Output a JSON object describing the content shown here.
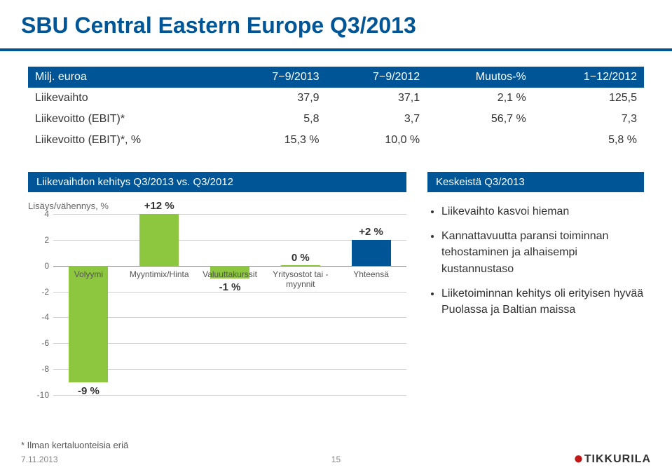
{
  "title": "SBU Central Eastern Europe Q3/2013",
  "table": {
    "header": [
      "Milj. euroa",
      "7−9/2013",
      "7−9/2012",
      "Muutos-%",
      "1−12/2012"
    ],
    "rows": [
      {
        "name": "Liikevaihto",
        "c1": "37,9",
        "c2": "37,1",
        "c3": "2,1 %",
        "c4": "125,5"
      },
      {
        "name": "Liikevoitto (EBIT)*",
        "c1": "5,8",
        "c2": "3,7",
        "c3": "56,7 %",
        "c4": "7,3"
      },
      {
        "name": "Liikevoitto (EBIT)*, %",
        "c1": "15,3 %",
        "c2": "10,0 %",
        "c3": "",
        "c4": "5,8 %"
      }
    ]
  },
  "midLeft": "Liikevaihdon kehitys Q3/2013 vs. Q3/2012",
  "midRight": "Keskeistä Q3/2013",
  "chart": {
    "yAxisLabel": "Lisäys/vähennys, %",
    "ymin": -10,
    "ymax": 4,
    "ytick_step": 2,
    "grid_color": "#cfcfcf",
    "zero_color": "#888888",
    "bars": [
      {
        "category": "Volyymi",
        "value": -9,
        "label": "-9 %",
        "color": "green"
      },
      {
        "category": "Myyntimix/Hinta",
        "value": 12,
        "label": "+12 %",
        "color": "green",
        "clamp_top": true
      },
      {
        "category": "Valuuttakurssit",
        "value": -1,
        "label": "-1 %",
        "color": "green"
      },
      {
        "category": "Yritysostot tai -\nmyynnit",
        "value": 0,
        "label": "0 %",
        "color": "green"
      },
      {
        "category": "Yhteensä",
        "value": 2,
        "label": "+2 %",
        "color": "blue"
      }
    ]
  },
  "bullets": [
    "Liikevaihto kasvoi hieman",
    "Kannattavuutta paransi toiminnan tehostaminen ja alhaisempi kustannustaso",
    "Liiketoiminnan kehitys oli erityisen hyvää Puolassa ja Baltian maissa"
  ],
  "footnote": "* Ilman kertaluonteisia eriä",
  "footerDate": "7.11.2013",
  "pageNumber": "15",
  "logoText": "TIKKURILA"
}
